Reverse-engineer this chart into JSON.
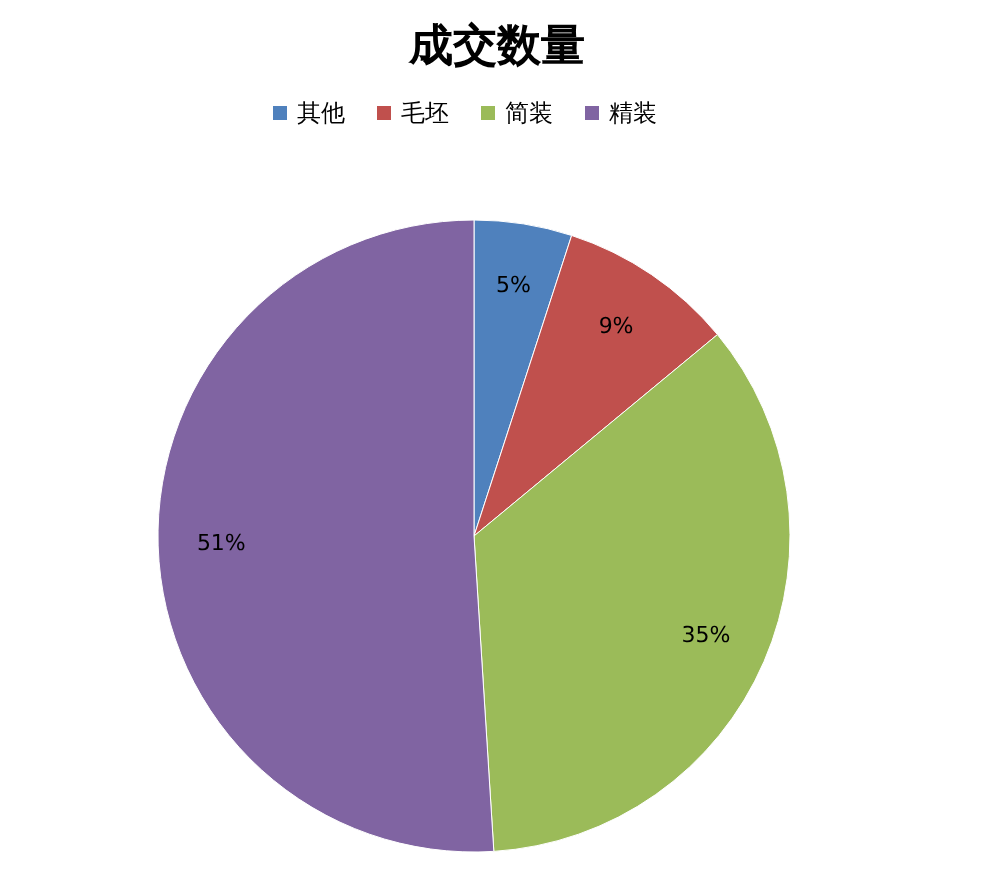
{
  "chart_data": {
    "type": "pie",
    "title": "成交数量",
    "categories": [
      "其他",
      "毛坯",
      "简装",
      "精装"
    ],
    "values": [
      5,
      9,
      35,
      51
    ],
    "colors": [
      "#4f81bd",
      "#c0504d",
      "#9bbb59",
      "#8064a2"
    ],
    "value_labels": [
      "5%",
      "9%",
      "35%",
      "51%"
    ],
    "legend": "top"
  }
}
